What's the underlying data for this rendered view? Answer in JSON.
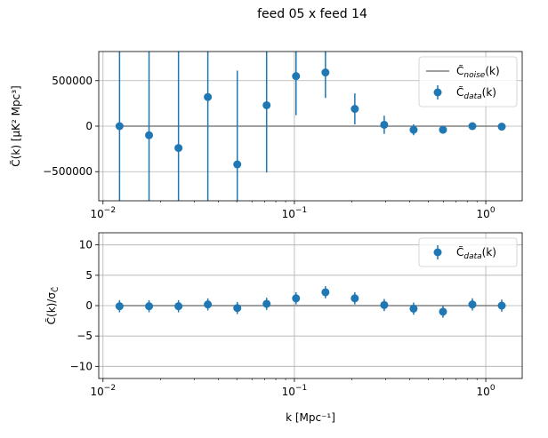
{
  "colors": {
    "data": "#1f77b4",
    "noise": "#808080",
    "grid": "#b0b0b0",
    "axes": "#000000"
  },
  "chart_data": [
    {
      "type": "scatter",
      "title": "feed 05 x feed 14",
      "xscale": "log",
      "xlim": [
        0.0095,
        1.55
      ],
      "ylim": [
        -820000,
        820000
      ],
      "ylabel": "C̃(k) [μK² Mpc³]",
      "xlabel": "",
      "grid": true,
      "legend_position": "top-right",
      "x_ticks": [
        {
          "value": 0.01,
          "base": "10",
          "exp": "−2"
        },
        {
          "value": 0.1,
          "base": "10",
          "exp": "−1"
        },
        {
          "value": 1,
          "base": "10",
          "exp": "0"
        }
      ],
      "y_ticks": [
        {
          "value": 500000,
          "label": "500000"
        },
        {
          "value": 0,
          "label": "0"
        },
        {
          "value": -500000,
          "label": "−500000"
        }
      ],
      "noise_line": {
        "name": "C̃noise(k)",
        "value": 0
      },
      "series": [
        {
          "name": "C̃data(k)",
          "x": [
            0.0122,
            0.0174,
            0.0248,
            0.0353,
            0.0503,
            0.0716,
            0.102,
            0.1453,
            0.2069,
            0.2947,
            0.4196,
            0.5977,
            0.851,
            1.212
          ],
          "y": [
            0,
            -100000,
            -240000,
            320000,
            -420000,
            230000,
            550000,
            590000,
            190000,
            15000,
            -40000,
            -40000,
            0,
            -5000
          ],
          "yerr": [
            1600000,
            1600000,
            1600000,
            1600000,
            1030000,
            740000,
            430000,
            280000,
            170000,
            100000,
            60000,
            40000,
            30000,
            30000
          ]
        }
      ]
    },
    {
      "type": "scatter",
      "title": "",
      "xscale": "log",
      "xlim": [
        0.0095,
        1.55
      ],
      "ylim": [
        -12,
        12
      ],
      "ylabel": "C̃(k)/σ",
      "ylabel_sub": "C̃",
      "xlabel": "k [Mpc⁻¹]",
      "grid": true,
      "legend_position": "top-right",
      "x_ticks": [
        {
          "value": 0.01,
          "base": "10",
          "exp": "−2"
        },
        {
          "value": 0.1,
          "base": "10",
          "exp": "−1"
        },
        {
          "value": 1,
          "base": "10",
          "exp": "0"
        }
      ],
      "y_ticks": [
        {
          "value": 10,
          "label": "10"
        },
        {
          "value": 5,
          "label": "5"
        },
        {
          "value": 0,
          "label": "0"
        },
        {
          "value": -5,
          "label": "−5"
        },
        {
          "value": -10,
          "label": "−10"
        }
      ],
      "noise_line": {
        "value": 0
      },
      "series": [
        {
          "name": "C̃data(k)",
          "x": [
            0.0122,
            0.0174,
            0.0248,
            0.0353,
            0.0503,
            0.0716,
            0.102,
            0.1453,
            0.2069,
            0.2947,
            0.4196,
            0.5977,
            0.851,
            1.212
          ],
          "y": [
            -0.1,
            -0.1,
            -0.1,
            0.2,
            -0.4,
            0.3,
            1.2,
            2.2,
            1.2,
            0.1,
            -0.5,
            -1.0,
            0.2,
            0.0
          ],
          "yerr": [
            1,
            1,
            1,
            1,
            1,
            1,
            1,
            1,
            1,
            1,
            1,
            1,
            1,
            1
          ]
        }
      ]
    }
  ]
}
